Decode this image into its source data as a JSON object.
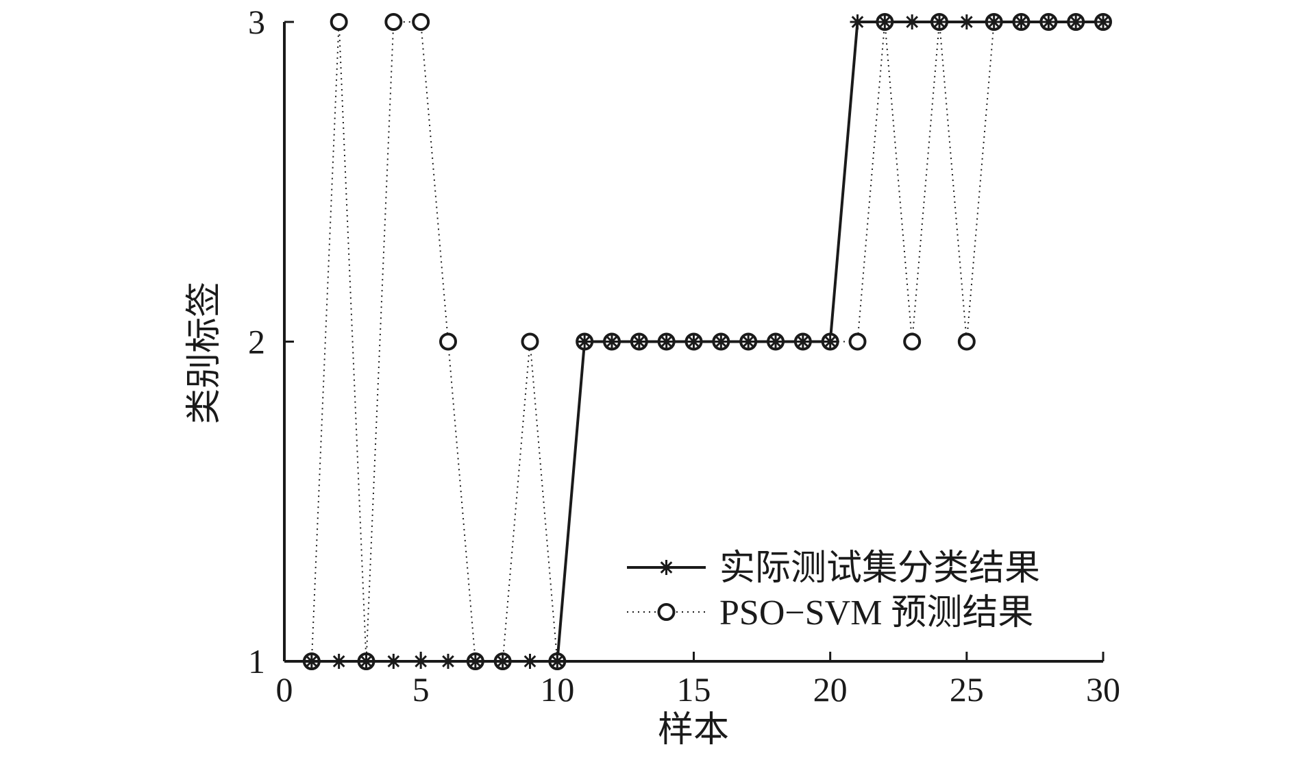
{
  "chart_data": {
    "type": "line",
    "xlabel": "样本",
    "ylabel": "类别标签",
    "xlim": [
      0,
      30
    ],
    "ylim": [
      1,
      3
    ],
    "xticks": [
      0,
      5,
      10,
      15,
      20,
      25,
      30
    ],
    "yticks": [
      1,
      2,
      3
    ],
    "grid": false,
    "legend_position": "bottom-right",
    "x": [
      1,
      2,
      3,
      4,
      5,
      6,
      7,
      8,
      9,
      10,
      11,
      12,
      13,
      14,
      15,
      16,
      17,
      18,
      19,
      20,
      21,
      22,
      23,
      24,
      25,
      26,
      27,
      28,
      29,
      30
    ],
    "series": [
      {
        "name": "实际测试集分类结果",
        "marker": "asterisk",
        "line_style": "solid",
        "color": "#1a1a1a",
        "values": [
          1,
          1,
          1,
          1,
          1,
          1,
          1,
          1,
          1,
          1,
          2,
          2,
          2,
          2,
          2,
          2,
          2,
          2,
          2,
          2,
          3,
          3,
          3,
          3,
          3,
          3,
          3,
          3,
          3,
          3
        ]
      },
      {
        "name": "PSO−SVM 预测结果",
        "marker": "circle",
        "line_style": "dotted",
        "color": "#1a1a1a",
        "values": [
          1,
          3,
          1,
          3,
          3,
          2,
          1,
          1,
          2,
          1,
          2,
          2,
          2,
          2,
          2,
          2,
          2,
          2,
          2,
          2,
          2,
          3,
          2,
          3,
          2,
          3,
          3,
          3,
          3,
          3
        ]
      }
    ]
  }
}
